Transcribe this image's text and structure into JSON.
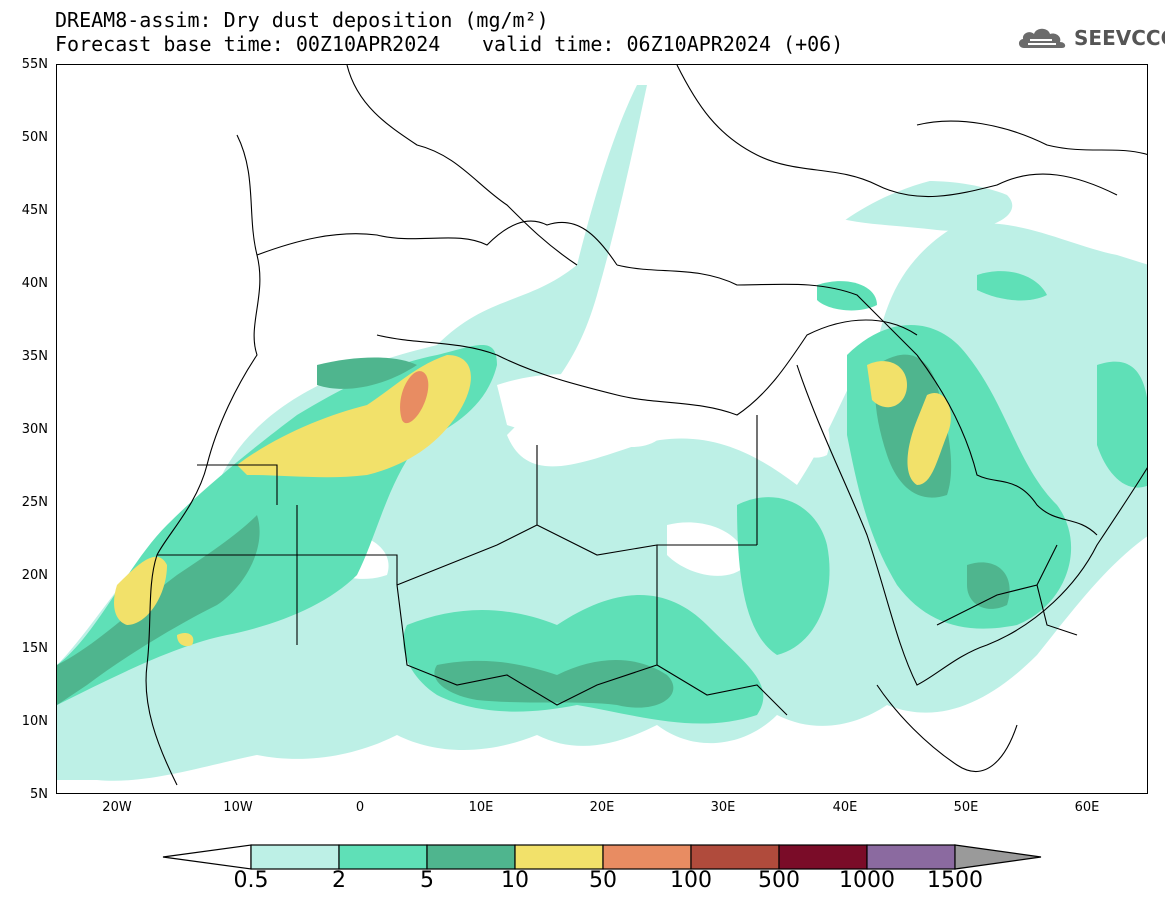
{
  "header": {
    "title": "DREAM8-assim: Dry dust deposition (mg/m²)",
    "base_time": "Forecast base time: 00Z10APR2024",
    "valid_time": "valid time: 06Z10APR2024 (+06)",
    "logo_text": "SEEVCCC"
  },
  "map": {
    "lat_labels": [
      "55N",
      "50N",
      "45N",
      "40N",
      "35N",
      "30N",
      "25N",
      "20N",
      "15N",
      "10N",
      "5N"
    ],
    "lon_labels": [
      "20W",
      "10W",
      "0",
      "10E",
      "20E",
      "30E",
      "40E",
      "50E",
      "60E"
    ]
  },
  "colorbar": {
    "labels": [
      "0.5",
      "2",
      "5",
      "10",
      "50",
      "100",
      "500",
      "1000",
      "1500"
    ],
    "colors": [
      "#ffffff",
      "#bdf0e6",
      "#5fe0b7",
      "#4fb58e",
      "#f2e16a",
      "#e88c62",
      "#b04b3c",
      "#7a0c28",
      "#8b6aa0",
      "#9a9a9a"
    ]
  },
  "legend_colors": {
    "level1": "#bdf0e6",
    "level2": "#5fe0b7",
    "level3": "#4fb58e",
    "level4": "#f2e16a",
    "level5": "#e88c62"
  }
}
